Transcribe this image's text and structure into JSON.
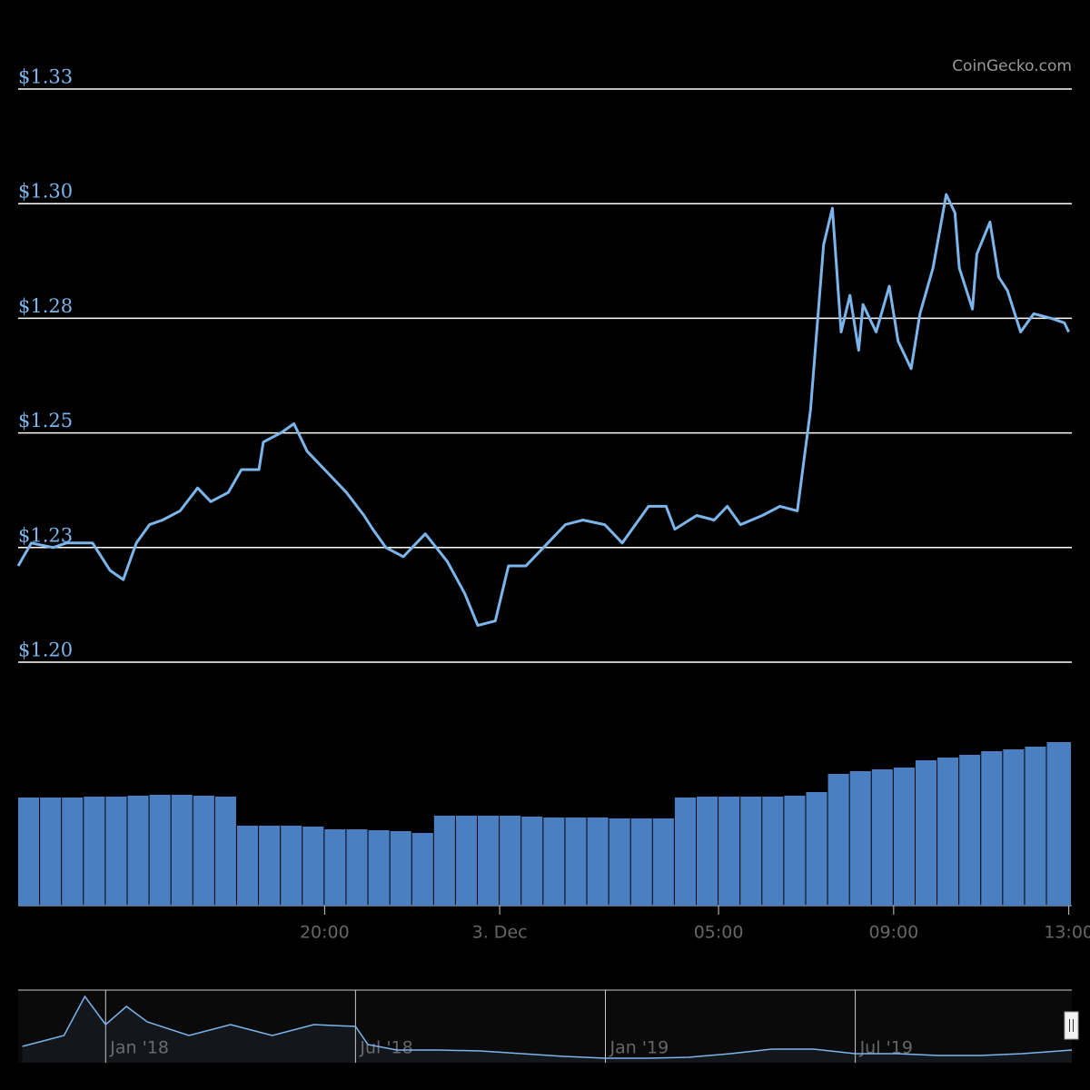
{
  "chart_data": {
    "type": "line",
    "credit": "CoinGecko.com",
    "color": "#7cb5ec",
    "x": [
      13.0,
      13.3,
      13.8,
      14.1,
      14.7,
      15.1,
      15.4,
      15.7,
      16.0,
      16.3,
      16.7,
      17.1,
      17.4,
      17.8,
      18.1,
      18.5,
      18.6,
      19.0,
      19.3,
      19.6,
      20.1,
      20.5,
      20.9,
      21.1,
      21.4,
      21.8,
      22.3,
      22.8,
      23.2,
      23.5,
      23.9,
      24.2,
      24.6,
      25.0,
      25.5,
      25.9,
      26.4,
      26.8,
      27.1,
      27.4,
      27.8,
      28.0,
      28.5,
      28.9,
      29.2,
      29.5,
      30.0,
      30.4,
      30.8,
      31.1,
      31.4,
      31.6,
      31.8,
      32.0,
      32.2,
      32.3,
      32.6,
      32.9,
      33.1,
      33.4,
      33.6,
      33.9,
      34.2,
      34.4,
      34.5,
      34.8,
      34.9,
      35.2,
      35.4,
      35.6,
      35.9,
      36.2,
      36.6,
      36.9,
      37.0
    ],
    "values": [
      1.221,
      1.226,
      1.225,
      1.226,
      1.226,
      1.22,
      1.218,
      1.226,
      1.23,
      1.231,
      1.233,
      1.238,
      1.235,
      1.237,
      1.242,
      1.242,
      1.248,
      1.25,
      1.252,
      1.246,
      1.241,
      1.237,
      1.232,
      1.229,
      1.225,
      1.223,
      1.228,
      1.222,
      1.215,
      1.208,
      1.209,
      1.221,
      1.221,
      1.225,
      1.23,
      1.231,
      1.23,
      1.226,
      1.23,
      1.234,
      1.234,
      1.229,
      1.232,
      1.231,
      1.234,
      1.23,
      1.232,
      1.234,
      1.233,
      1.255,
      1.291,
      1.299,
      1.272,
      1.28,
      1.268,
      1.278,
      1.272,
      1.282,
      1.27,
      1.264,
      1.276,
      1.286,
      1.302,
      1.298,
      1.286,
      1.277,
      1.289,
      1.296,
      1.284,
      1.281,
      1.272,
      1.276,
      1.275,
      1.274,
      1.272
    ],
    "xlim": [
      13,
      37.07
    ],
    "xticks": [
      {
        "value": 20,
        "label": "20:00"
      },
      {
        "value": 24,
        "label": "3. Dec"
      },
      {
        "value": 29,
        "label": "05:00"
      },
      {
        "value": 33,
        "label": "09:00"
      },
      {
        "value": 37,
        "label": "13:00"
      }
    ],
    "ylim": [
      1.2,
      1.325
    ],
    "yticks": [
      {
        "value": 1.2,
        "label": "$1.20"
      },
      {
        "value": 1.225,
        "label": "$1.23"
      },
      {
        "value": 1.25,
        "label": "$1.25"
      },
      {
        "value": 1.275,
        "label": "$1.28"
      },
      {
        "value": 1.3,
        "label": "$1.30"
      },
      {
        "value": 1.325,
        "label": "$1.33"
      }
    ],
    "grid": true,
    "volume": {
      "color": "#4a7fc1",
      "ylim": [
        0,
        200
      ],
      "x": [
        13,
        13.5,
        14,
        14.5,
        15,
        15.5,
        16,
        16.5,
        17,
        17.5,
        18,
        18.5,
        19,
        19.5,
        20,
        20.5,
        21,
        21.5,
        22,
        22.5,
        23,
        23.5,
        24,
        24.5,
        25,
        25.5,
        26,
        26.5,
        27,
        27.5,
        28,
        28.5,
        29,
        29.5,
        30,
        30.5,
        31,
        31.5,
        32,
        32.5,
        33,
        33.5,
        34,
        34.5,
        35,
        35.5,
        36,
        36.5
      ],
      "values": [
        119,
        119,
        119,
        120,
        120,
        121,
        122,
        122,
        121,
        120,
        88,
        88,
        88,
        87,
        84,
        84,
        83,
        82,
        80,
        99,
        99,
        99,
        99,
        98,
        97,
        97,
        97,
        96,
        96,
        96,
        119,
        120,
        120,
        120,
        120,
        121,
        125,
        145,
        148,
        150,
        152,
        160,
        163,
        166,
        170,
        172,
        175,
        180
      ]
    },
    "navigator": {
      "color": "#7cb5ec",
      "xlim": [
        -2.1,
        23.2
      ],
      "ylim": [
        0,
        80
      ],
      "x": [
        -2,
        -1,
        -0.5,
        0,
        0.5,
        1,
        2,
        3,
        4,
        5,
        6,
        6.3,
        7,
        8,
        9,
        10,
        11,
        12,
        13,
        14,
        15,
        16,
        17,
        18,
        19,
        20,
        21,
        22,
        23.2
      ],
      "values": [
        18,
        30,
        73,
        42,
        62,
        45,
        30,
        42,
        30,
        42,
        40,
        20,
        14,
        14,
        13,
        10,
        7,
        5,
        5,
        6,
        10,
        15,
        15,
        10,
        10,
        8,
        8,
        10,
        14
      ],
      "xticks": [
        {
          "value": 0,
          "label": "Jan '18"
        },
        {
          "value": 6,
          "label": "Jul '18"
        },
        {
          "value": 12,
          "label": "Jan '19"
        },
        {
          "value": 18,
          "label": "Jul '19"
        }
      ]
    }
  }
}
